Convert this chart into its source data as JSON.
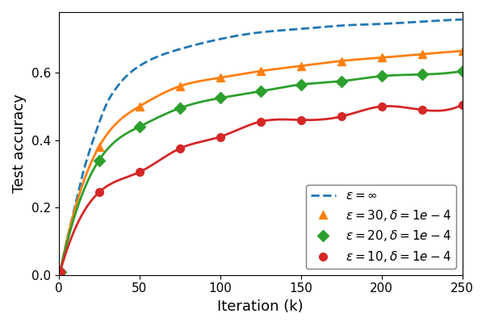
{
  "xlabel": "Iteration (k)",
  "ylabel": "Test accuracy",
  "xlim": [
    0,
    250
  ],
  "ylim": [
    0.0,
    0.78
  ],
  "xticks": [
    0,
    50,
    100,
    150,
    200,
    250
  ],
  "yticks": [
    0.0,
    0.2,
    0.4,
    0.6
  ],
  "inf_x": [
    1,
    5,
    10,
    15,
    20,
    25,
    30,
    35,
    40,
    50,
    75,
    100,
    125,
    150,
    175,
    200,
    225,
    250
  ],
  "inf_y": [
    0.01,
    0.1,
    0.2,
    0.3,
    0.38,
    0.45,
    0.51,
    0.55,
    0.58,
    0.62,
    0.67,
    0.7,
    0.72,
    0.73,
    0.74,
    0.745,
    0.752,
    0.758
  ],
  "eps30_x": [
    1,
    25,
    50,
    75,
    100,
    125,
    150,
    175,
    200,
    225,
    250
  ],
  "eps30_y": [
    0.01,
    0.38,
    0.5,
    0.56,
    0.585,
    0.605,
    0.62,
    0.635,
    0.645,
    0.655,
    0.665
  ],
  "eps20_x": [
    1,
    25,
    50,
    75,
    100,
    125,
    150,
    175,
    200,
    225,
    250
  ],
  "eps20_y": [
    0.01,
    0.34,
    0.44,
    0.495,
    0.525,
    0.545,
    0.565,
    0.575,
    0.59,
    0.595,
    0.605
  ],
  "eps10_x": [
    1,
    25,
    50,
    75,
    100,
    125,
    150,
    175,
    200,
    225,
    250
  ],
  "eps10_y": [
    0.01,
    0.245,
    0.305,
    0.375,
    0.41,
    0.455,
    0.46,
    0.47,
    0.5,
    0.49,
    0.505
  ],
  "color_inf": "#1f77b4",
  "color_eps30": "#ff7f0e",
  "color_eps20": "#2ca02c",
  "color_eps10": "#d62728",
  "label_inf": "$\\varepsilon = \\infty$",
  "label_eps30": "$\\varepsilon = 30, \\delta = 1e-4$",
  "label_eps20": "$\\varepsilon = 20, \\delta = 1e-4$",
  "label_eps10": "$\\varepsilon = 10, \\delta = 1e-4$",
  "figsize": [
    6.02,
    4.04
  ],
  "dpi": 100
}
